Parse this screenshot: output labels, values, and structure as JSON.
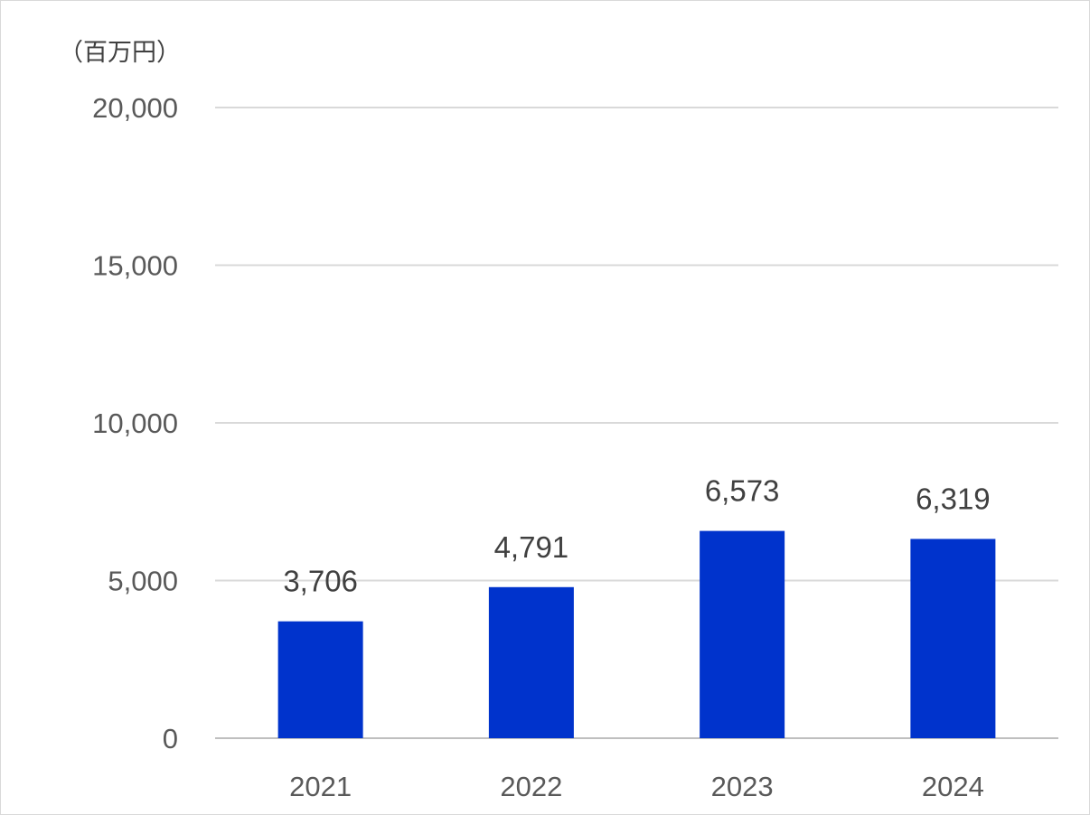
{
  "chart_data": {
    "type": "bar",
    "unit_label": "（百万円）",
    "categories": [
      "2021",
      "2022",
      "2023",
      "2024"
    ],
    "values": [
      3706,
      4791,
      6573,
      6319
    ],
    "data_labels": [
      "3,706",
      "4,791",
      "6,573",
      "6,319"
    ],
    "y_ticks": [
      0,
      5000,
      10000,
      15000,
      20000
    ],
    "y_tick_labels": [
      "0",
      "5,000",
      "10,000",
      "15,000",
      "20,000"
    ],
    "ylim": [
      0,
      20000
    ],
    "grid": true,
    "legend": "none",
    "bar_color": "#0033CC"
  }
}
